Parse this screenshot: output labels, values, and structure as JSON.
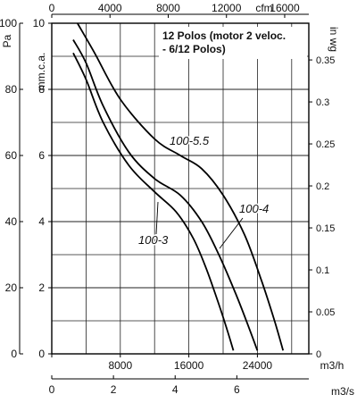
{
  "chart_data": {
    "type": "line",
    "title": "12 Polos (motor 2 veloc. - 6/12 Polos)",
    "title_lines": [
      "12 Polos (motor 2 veloc.",
      "- 6/12 Polos)"
    ],
    "x_primary": {
      "label": "m3/h",
      "range": [
        0,
        30000
      ],
      "ticks": [
        0,
        8000,
        16000,
        24000
      ]
    },
    "x_secondary_bottom": {
      "label": "m3/s",
      "range": [
        0,
        8.3333
      ],
      "ticks": [
        0,
        2,
        4,
        6
      ]
    },
    "x_top": {
      "label": "cfm",
      "range": [
        0,
        17657
      ],
      "ticks": [
        0,
        4000,
        8000,
        12000,
        16000
      ]
    },
    "y_primary": {
      "label": "mm.c.a.",
      "range": [
        0,
        10
      ],
      "ticks": [
        0,
        2,
        4,
        6,
        8,
        10
      ]
    },
    "y_outer_left": {
      "label": "Pa",
      "range": [
        0,
        100
      ],
      "ticks": [
        0,
        20,
        40,
        60,
        80,
        100
      ]
    },
    "y_right": {
      "label": "in wg",
      "range": [
        0,
        0.3937
      ],
      "ticks": [
        0,
        0.05,
        0.1,
        0.15,
        0.2,
        0.25,
        0.3,
        0.35
      ]
    },
    "grid": true,
    "series": [
      {
        "name": "100-5.5",
        "x": [
          3000,
          5000,
          8000,
          12000,
          15000,
          17500,
          20000,
          22500,
          24500,
          26000,
          27000
        ],
        "y": [
          10.0,
          9.1,
          7.7,
          6.5,
          6.0,
          5.6,
          4.8,
          3.6,
          2.2,
          1.0,
          0.1
        ]
      },
      {
        "name": "100-4",
        "x": [
          2500,
          4000,
          6000,
          9000,
          12000,
          15000,
          17500,
          19500,
          21500,
          23000,
          24000
        ],
        "y": [
          9.5,
          8.8,
          7.5,
          6.1,
          5.3,
          4.8,
          4.0,
          3.0,
          1.8,
          0.8,
          0.1
        ]
      },
      {
        "name": "100-3",
        "x": [
          2500,
          4000,
          6000,
          9000,
          12000,
          14500,
          16500,
          18000,
          19500,
          20500,
          21200
        ],
        "y": [
          9.1,
          8.3,
          7.0,
          5.7,
          4.9,
          4.3,
          3.5,
          2.6,
          1.5,
          0.7,
          0.1
        ]
      }
    ]
  }
}
